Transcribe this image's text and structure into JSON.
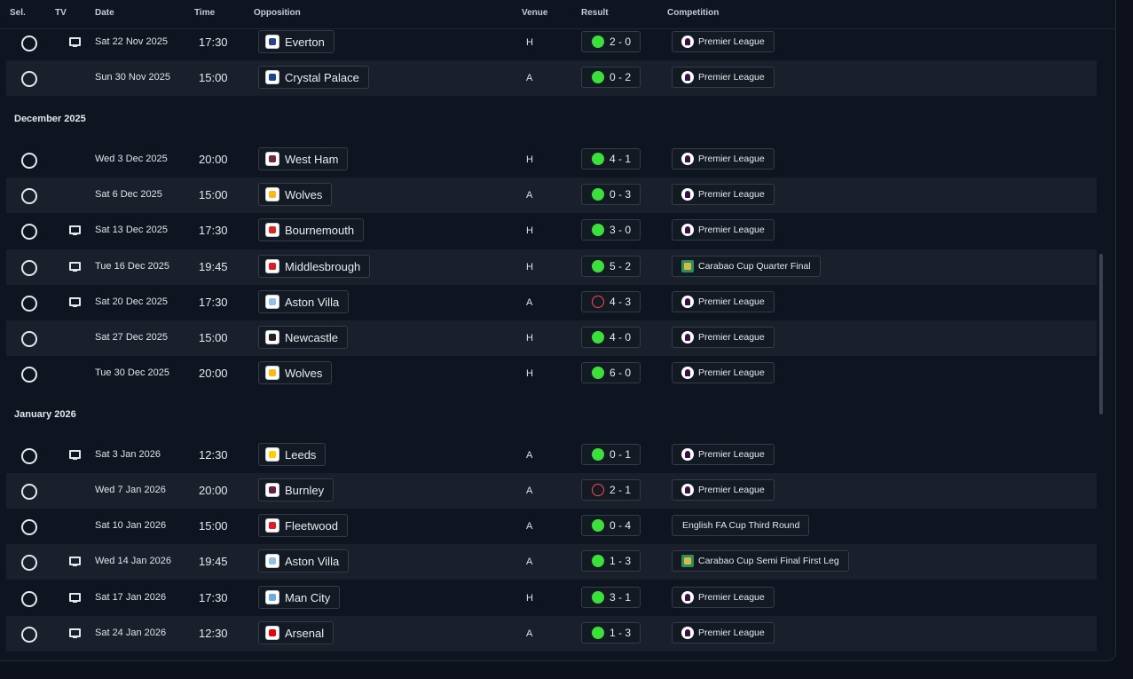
{
  "headers": {
    "sel": "Sel.",
    "tv": "TV",
    "date": "Date",
    "time": "Time",
    "opposition": "Opposition",
    "venue": "Venue",
    "result": "Result",
    "competition": "Competition"
  },
  "sections": {
    "december": "December 2025",
    "january": "January 2026"
  },
  "colors": {
    "win": "#3be03b",
    "loss": "#ff4b4b",
    "background": "#0f1520",
    "row_alt": "#1a202b"
  },
  "fixtures": [
    {
      "tv": true,
      "date": "Sat 22 Nov 2025",
      "time": "17:30",
      "opponent": "Everton",
      "crest": "everton-crest",
      "venue": "H",
      "outcome": "win",
      "score": "2 - 0",
      "competition": "Premier League",
      "comp_icon": "premier-league-icon"
    },
    {
      "tv": false,
      "date": "Sun 30 Nov 2025",
      "time": "15:00",
      "opponent": "Crystal Palace",
      "crest": "crystal-palace-crest",
      "venue": "A",
      "outcome": "win",
      "score": "0 - 2",
      "competition": "Premier League",
      "comp_icon": "premier-league-icon"
    },
    {
      "tv": false,
      "date": "Wed 3 Dec 2025",
      "time": "20:00",
      "opponent": "West Ham",
      "crest": "west-ham-crest",
      "venue": "H",
      "outcome": "win",
      "score": "4 - 1",
      "competition": "Premier League",
      "comp_icon": "premier-league-icon"
    },
    {
      "tv": false,
      "date": "Sat 6 Dec 2025",
      "time": "15:00",
      "opponent": "Wolves",
      "crest": "wolves-crest",
      "venue": "A",
      "outcome": "win",
      "score": "0 - 3",
      "competition": "Premier League",
      "comp_icon": "premier-league-icon"
    },
    {
      "tv": true,
      "date": "Sat 13 Dec 2025",
      "time": "17:30",
      "opponent": "Bournemouth",
      "crest": "bournemouth-crest",
      "venue": "H",
      "outcome": "win",
      "score": "3 - 0",
      "competition": "Premier League",
      "comp_icon": "premier-league-icon"
    },
    {
      "tv": true,
      "date": "Tue 16 Dec 2025",
      "time": "19:45",
      "opponent": "Middlesbrough",
      "crest": "middlesbrough-crest",
      "venue": "H",
      "outcome": "win",
      "score": "5 - 2",
      "competition": "Carabao Cup Quarter Final",
      "comp_icon": "carabao-cup-icon"
    },
    {
      "tv": true,
      "date": "Sat 20 Dec 2025",
      "time": "17:30",
      "opponent": "Aston Villa",
      "crest": "aston-villa-crest",
      "venue": "A",
      "outcome": "loss",
      "score": "4 - 3",
      "competition": "Premier League",
      "comp_icon": "premier-league-icon"
    },
    {
      "tv": false,
      "date": "Sat 27 Dec 2025",
      "time": "15:00",
      "opponent": "Newcastle",
      "crest": "newcastle-crest",
      "venue": "H",
      "outcome": "win",
      "score": "4 - 0",
      "competition": "Premier League",
      "comp_icon": "premier-league-icon"
    },
    {
      "tv": false,
      "date": "Tue 30 Dec 2025",
      "time": "20:00",
      "opponent": "Wolves",
      "crest": "wolves-crest",
      "venue": "H",
      "outcome": "win",
      "score": "6 - 0",
      "competition": "Premier League",
      "comp_icon": "premier-league-icon"
    },
    {
      "tv": true,
      "date": "Sat 3 Jan 2026",
      "time": "12:30",
      "opponent": "Leeds",
      "crest": "leeds-crest",
      "venue": "A",
      "outcome": "win",
      "score": "0 - 1",
      "competition": "Premier League",
      "comp_icon": "premier-league-icon"
    },
    {
      "tv": false,
      "date": "Wed 7 Jan 2026",
      "time": "20:00",
      "opponent": "Burnley",
      "crest": "burnley-crest",
      "venue": "A",
      "outcome": "loss",
      "score": "2 - 1",
      "competition": "Premier League",
      "comp_icon": "premier-league-icon"
    },
    {
      "tv": false,
      "date": "Sat 10 Jan 2026",
      "time": "15:00",
      "opponent": "Fleetwood",
      "crest": "fleetwood-crest",
      "venue": "A",
      "outcome": "win",
      "score": "0 - 4",
      "competition": "English FA Cup Third Round",
      "comp_icon": ""
    },
    {
      "tv": true,
      "date": "Wed 14 Jan 2026",
      "time": "19:45",
      "opponent": "Aston Villa",
      "crest": "aston-villa-crest",
      "venue": "A",
      "outcome": "win",
      "score": "1 - 3",
      "competition": "Carabao Cup Semi Final First Leg",
      "comp_icon": "carabao-cup-icon"
    },
    {
      "tv": true,
      "date": "Sat 17 Jan 2026",
      "time": "17:30",
      "opponent": "Man City",
      "crest": "man-city-crest",
      "venue": "H",
      "outcome": "win",
      "score": "3 - 1",
      "competition": "Premier League",
      "comp_icon": "premier-league-icon"
    },
    {
      "tv": true,
      "date": "Sat 24 Jan 2026",
      "time": "12:30",
      "opponent": "Arsenal",
      "crest": "arsenal-crest",
      "venue": "A",
      "outcome": "win",
      "score": "1 - 3",
      "competition": "Premier League",
      "comp_icon": "premier-league-icon"
    }
  ]
}
